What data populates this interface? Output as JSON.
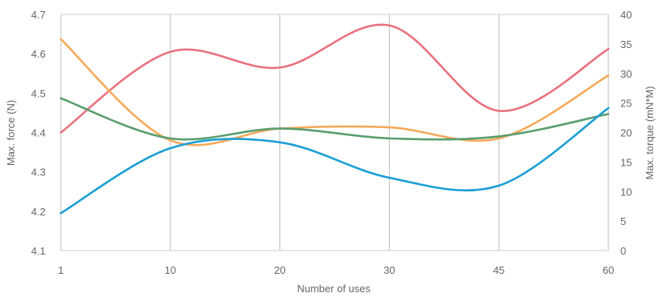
{
  "chart_data": {
    "type": "line",
    "title": "",
    "xlabel": "Number of uses",
    "ylabel": "Max. force (N)",
    "y2label": "Max. torque (mN*M)",
    "categories": [
      "1",
      "10",
      "20",
      "30",
      "45",
      "60"
    ],
    "ylim": [
      4.1,
      4.7
    ],
    "yticks": [
      "4.1",
      "4.2",
      "4.3",
      "4.4",
      "4.5",
      "4.6",
      "4.7"
    ],
    "y2lim": [
      0,
      40
    ],
    "y2ticks": [
      "0",
      "5",
      "10",
      "15",
      "20",
      "25",
      "30",
      "35",
      "40"
    ],
    "grid": {
      "vertical": true,
      "horizontal": false
    },
    "legend": "none",
    "series": [
      {
        "color": "#e8717f",
        "axis": "left",
        "values": [
          4.4,
          4.605,
          4.565,
          4.672,
          4.455,
          4.612
        ]
      },
      {
        "color": "#f5a95a",
        "axis": "left",
        "values": [
          4.637,
          4.38,
          4.41,
          4.413,
          4.385,
          4.545
        ]
      },
      {
        "color": "#5a9e6f",
        "axis": "left",
        "values": [
          4.487,
          4.385,
          4.41,
          4.385,
          4.39,
          4.447
        ]
      },
      {
        "color": "#1b9fd5",
        "axis": "left",
        "values": [
          4.195,
          4.36,
          4.375,
          4.285,
          4.265,
          4.462
        ]
      }
    ]
  }
}
